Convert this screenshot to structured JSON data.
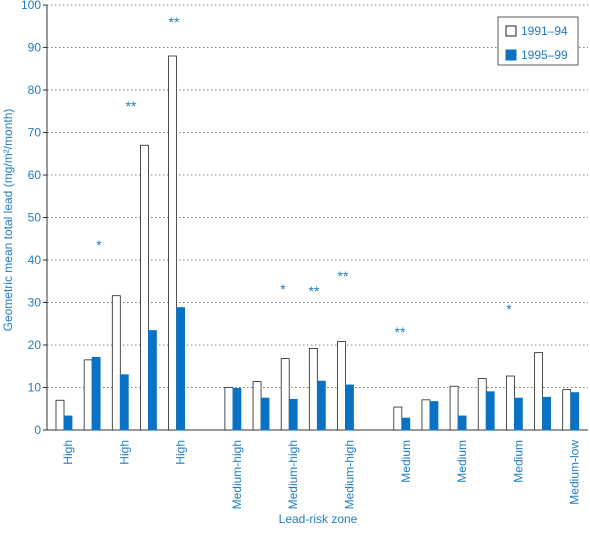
{
  "chart_data": {
    "type": "bar",
    "x_label": "Lead-risk zone",
    "y_label": "Geometric mean total lead (mg/m²/month)",
    "categories": [
      "High",
      null,
      "High",
      null,
      "High",
      null,
      "Medium-high",
      null,
      "Medium-high",
      null,
      "Medium-high",
      null,
      "Medium",
      null,
      "Medium",
      null,
      "Medium",
      null,
      "Medium-low"
    ],
    "series": [
      {
        "name": "1991–94",
        "color": "#ffffff",
        "values": [
          7,
          16.5,
          31.6,
          67,
          88,
          null,
          10,
          11.4,
          16.8,
          19.2,
          20.8,
          null,
          5.4,
          7.1,
          10.3,
          12.1,
          12.7,
          18.2,
          9.5
        ]
      },
      {
        "name": "1995–99",
        "color": "#0a72c4",
        "values": [
          3.3,
          17.1,
          13,
          23.4,
          28.8,
          null,
          9.8,
          7.5,
          7.2,
          11.5,
          10.6,
          null,
          2.8,
          6.7,
          3.3,
          9,
          7.5,
          7.7,
          8.8
        ]
      }
    ],
    "annotations": [
      "*",
      "**",
      "**",
      "*",
      "**",
      "**",
      "**",
      "*"
    ],
    "ylim": [
      0,
      100
    ],
    "yticks": [
      0,
      10,
      20,
      30,
      40,
      50,
      60,
      70,
      80,
      90,
      100
    ],
    "grid": true,
    "legend": "upper right"
  }
}
